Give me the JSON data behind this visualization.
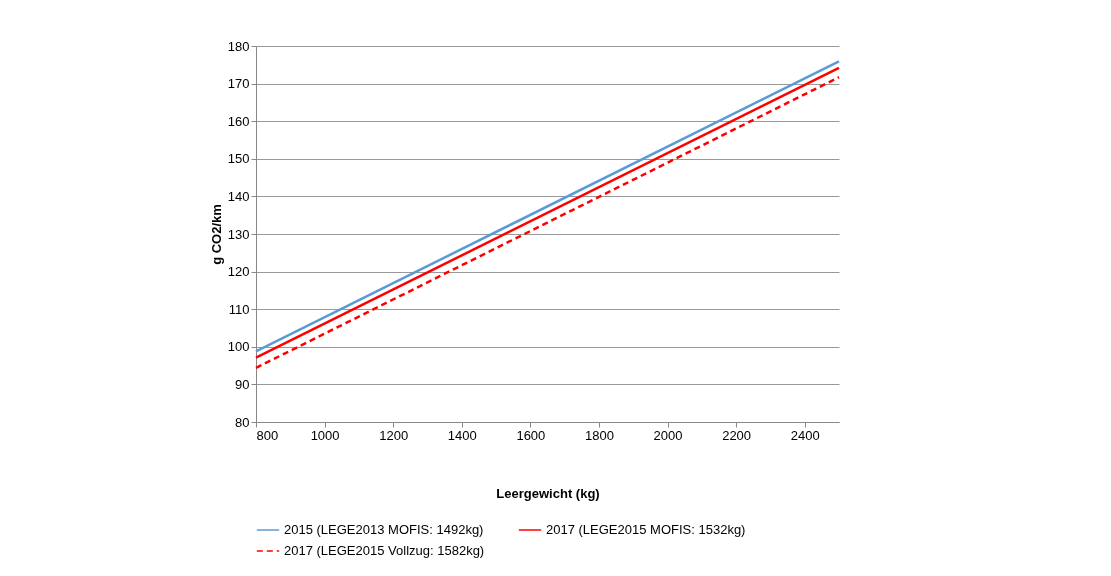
{
  "chart_data": {
    "type": "line",
    "xlabel": "Leergewicht (kg)",
    "ylabel": "g CO2/km",
    "x": [
      800,
      2500
    ],
    "series": [
      {
        "name": "2015 (LEGE2013 MOFIS: 1492kg)",
        "color": "#5b9bd5",
        "values": [
          98.8,
          175.9
        ],
        "line_style": "solid"
      },
      {
        "name": "2017 (LEGE2015 MOFIS: 1532kg)",
        "color": "#ff0000",
        "values": [
          97.1,
          174.2
        ],
        "line_style": "solid"
      },
      {
        "name": "2017 (LEGE2015 Vollzug: 1582kg)",
        "color": "#ff0000",
        "values": [
          94.4,
          171.7
        ],
        "line_style": "dashed"
      }
    ],
    "xlim": [
      800,
      2500
    ],
    "xticks": [
      800,
      1000,
      1200,
      1400,
      1600,
      1800,
      2000,
      2200,
      2400
    ],
    "ylim": [
      80,
      180
    ],
    "yticks": [
      80,
      90,
      100,
      110,
      120,
      130,
      140,
      150,
      160,
      170,
      180
    ],
    "grid": "y",
    "legend": "bottom",
    "marker": "none"
  }
}
